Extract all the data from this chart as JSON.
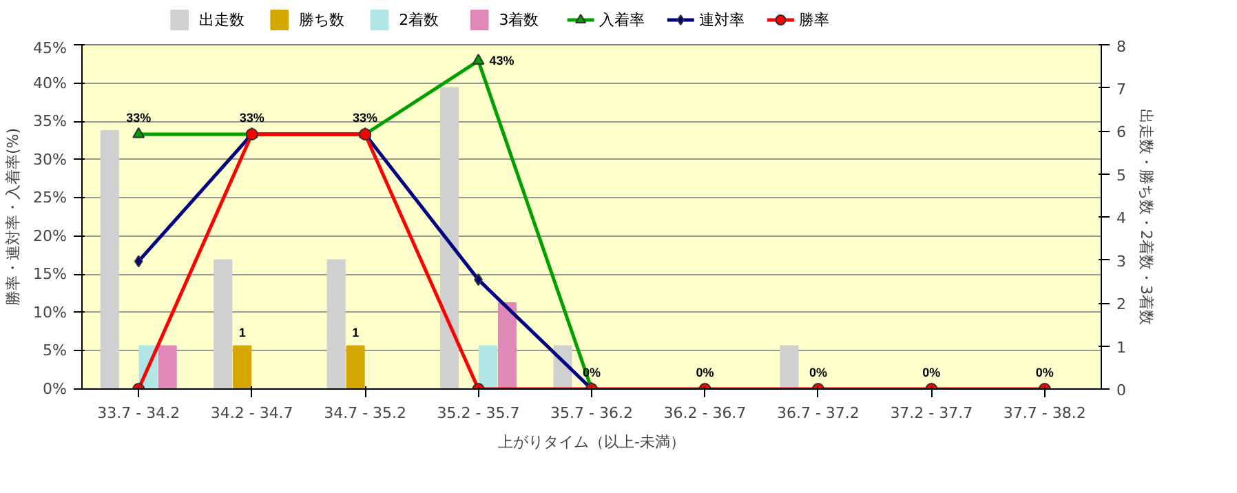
{
  "chart_data": {
    "type": "bar",
    "xlabel": "上がりタイム（以上-未満）",
    "ylabel": "勝率・連対率・入着率(%)",
    "y2label": "出走数・勝ち数・2着数・3着数",
    "categories": [
      "33.7 - 34.2",
      "34.2 - 34.7",
      "34.7 - 35.2",
      "35.2 - 35.7",
      "35.7 - 36.2",
      "36.2 - 36.7",
      "36.7 - 37.2",
      "37.2 - 37.7",
      "37.7 - 38.2"
    ],
    "series": [
      {
        "name": "出走数",
        "axis": "y2",
        "color": "#d0d0d0",
        "values": [
          6,
          3,
          3,
          7,
          1,
          0,
          1,
          0,
          0
        ]
      },
      {
        "name": "勝ち数",
        "axis": "y2",
        "color": "#d4a800",
        "values": [
          0,
          1,
          1,
          0,
          0,
          0,
          0,
          0,
          0
        ],
        "value_labels": [
          null,
          "1",
          "1",
          null,
          null,
          null,
          null,
          null,
          null
        ]
      },
      {
        "name": "2着数",
        "axis": "y2",
        "color": "#b0e6e6",
        "values": [
          1,
          0,
          0,
          1,
          0,
          0,
          0,
          0,
          0
        ]
      },
      {
        "name": "3着数",
        "axis": "y2",
        "color": "#e088b8",
        "values": [
          1,
          0,
          0,
          2,
          0,
          0,
          0,
          0,
          0
        ]
      },
      {
        "name": "入着率",
        "type": "line",
        "marker": "triangle",
        "color": "#00a000",
        "values": [
          33.3,
          33.3,
          33.3,
          42.9,
          0,
          null,
          null,
          null,
          null
        ],
        "value_labels": [
          "33%",
          "33%",
          "33%",
          "43%",
          "0%",
          null,
          null,
          null,
          null
        ]
      },
      {
        "name": "連対率",
        "type": "line",
        "marker": "diamond",
        "color": "#000080",
        "values": [
          16.7,
          33.3,
          33.3,
          14.3,
          0,
          null,
          null,
          null,
          null
        ]
      },
      {
        "name": "勝率",
        "type": "line",
        "marker": "circle",
        "color": "#ff0000",
        "values": [
          0,
          33.3,
          33.3,
          0,
          0,
          0,
          0,
          0,
          0
        ],
        "value_labels": [
          null,
          null,
          null,
          null,
          null,
          "0%",
          "0%",
          "0%",
          "0%"
        ]
      }
    ],
    "ylim": [
      0,
      45
    ],
    "yticks": [
      {
        "value": 0,
        "label": "0%"
      },
      {
        "value": 5,
        "label": "5%"
      },
      {
        "value": 10,
        "label": "10%"
      },
      {
        "value": 15,
        "label": "15%"
      },
      {
        "value": 20,
        "label": "20%"
      },
      {
        "value": 25,
        "label": "25%"
      },
      {
        "value": 30,
        "label": "30%"
      },
      {
        "value": 35,
        "label": "35%"
      },
      {
        "value": 40,
        "label": "40%"
      },
      {
        "value": 45,
        "label": "45%"
      }
    ],
    "y2lim": [
      0,
      8
    ],
    "y2ticks": [
      0,
      1,
      2,
      3,
      4,
      5,
      6,
      7,
      8
    ],
    "grid": "y",
    "legend": "top left"
  }
}
